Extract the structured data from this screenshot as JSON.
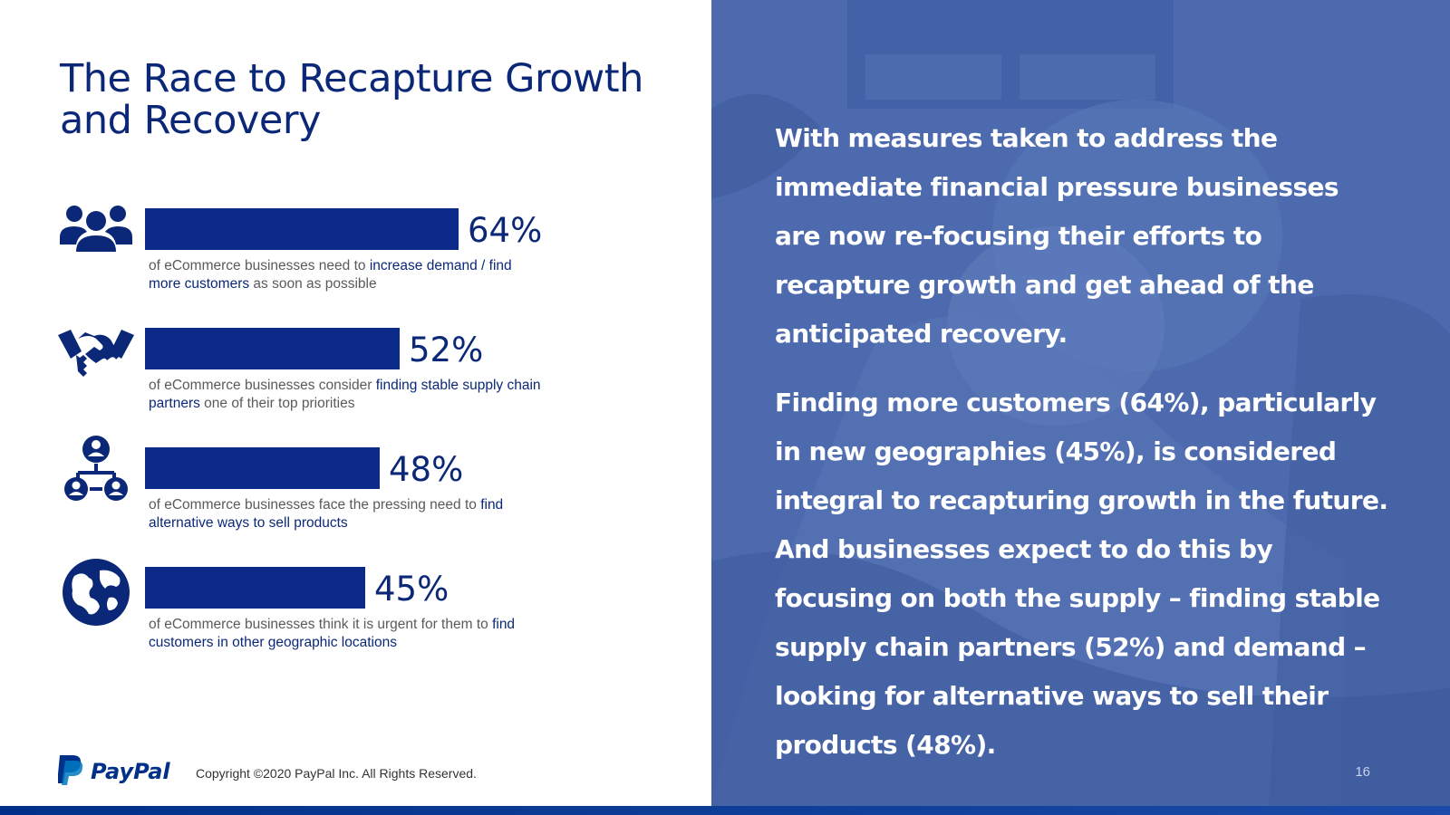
{
  "title": "The Race to Recapture Growth and Recovery",
  "stats": [
    {
      "value": "64%",
      "fraction": 0.64,
      "desc_before": "of eCommerce businesses need to ",
      "desc_highlight": "increase demand / find more customers",
      "desc_after": " as soon as possible",
      "icon": "people-group-icon"
    },
    {
      "value": "52%",
      "fraction": 0.52,
      "desc_before": "of eCommerce businesses consider ",
      "desc_highlight": "finding stable supply chain partners",
      "desc_after": " one of their top priorities",
      "icon": "handshake-icon"
    },
    {
      "value": "48%",
      "fraction": 0.48,
      "desc_before": "of eCommerce businesses face the pressing need to ",
      "desc_highlight": "find alternative ways to sell products",
      "desc_after": "",
      "icon": "network-people-icon"
    },
    {
      "value": "45%",
      "fraction": 0.45,
      "desc_before": "of eCommerce businesses think it is urgent for them to ",
      "desc_highlight": "find customers in other geographic locations",
      "desc_after": "",
      "icon": "globe-icon"
    }
  ],
  "footer": {
    "brand": "PayPal",
    "copyright": "Copyright ©2020 PayPal Inc. All Rights Reserved."
  },
  "right_panel": {
    "paragraph1": "With measures taken to address the immediate financial pressure businesses are now re-focusing their efforts to recapture growth and get ahead of the anticipated recovery.",
    "paragraph2": "Finding more customers (64%), particularly in new geographies (45%), is considered integral to recapturing growth in the future. And businesses expect to do this by focusing on both the supply – finding stable supply chain partners (52%) and demand – looking for alternative ways to sell their products (48%)."
  },
  "page_number": "16",
  "colors": {
    "accent": "#0b2a8a",
    "title": "#0b2878",
    "panel": "#4d6aae"
  }
}
